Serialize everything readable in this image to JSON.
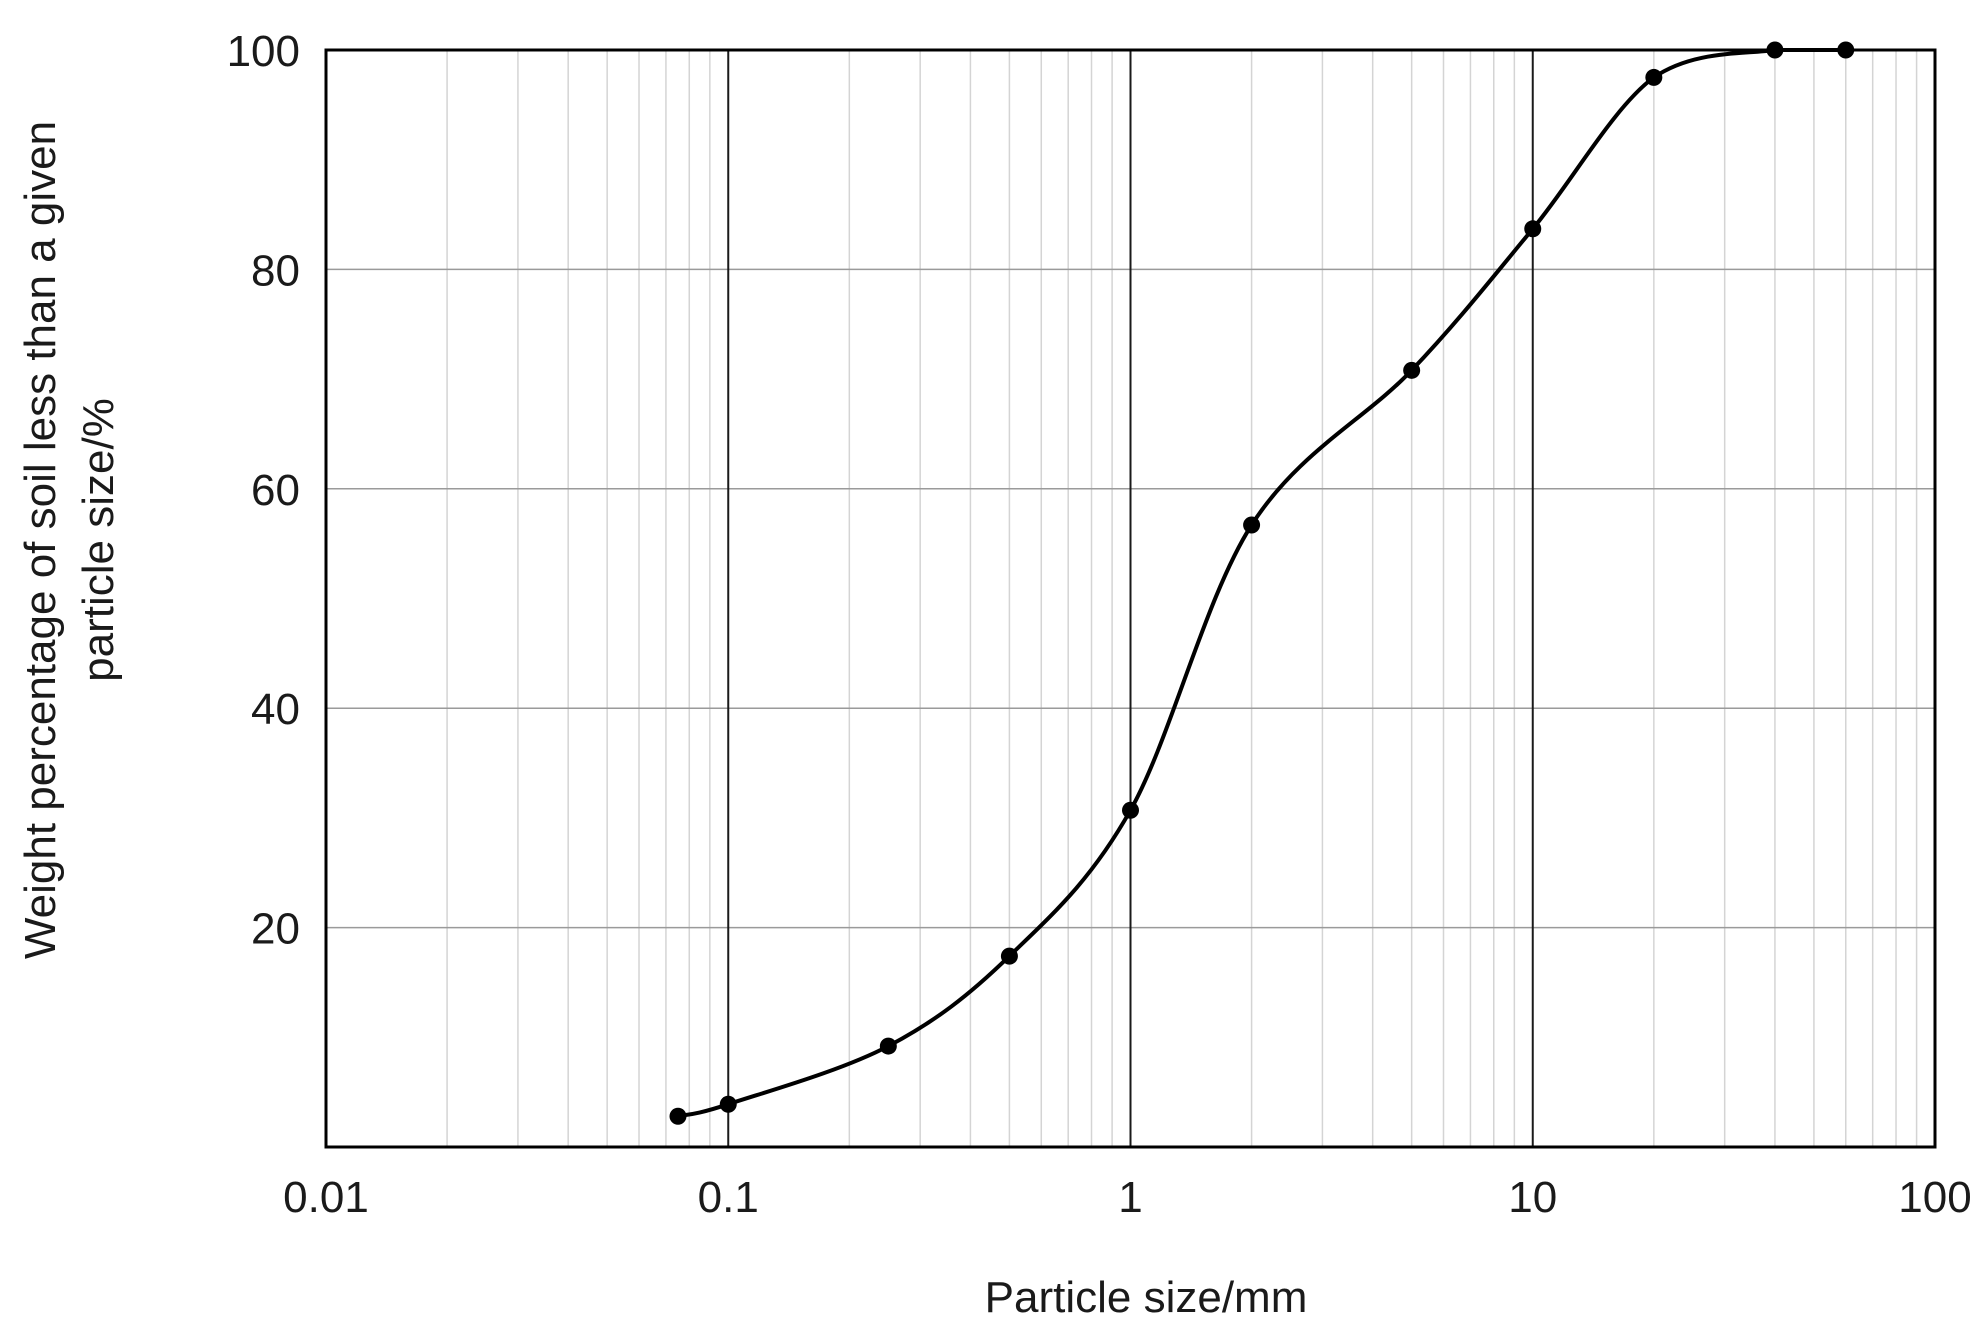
{
  "chart_data": {
    "type": "line",
    "title": "",
    "xlabel": "Particle size/mm",
    "ylabel_lines": [
      "Weight percentage of soil less than a given",
      "particle size/%"
    ],
    "x_scale": "log",
    "xlim": [
      0.01,
      100
    ],
    "ylim": [
      0,
      100
    ],
    "x_ticks": [
      0.01,
      0.1,
      1,
      10,
      100
    ],
    "x_tick_labels": [
      "0.01",
      "0.1",
      "1",
      "10",
      "100"
    ],
    "y_ticks": [
      20,
      40,
      60,
      80,
      100
    ],
    "y_tick_labels": [
      "20",
      "40",
      "60",
      "80",
      "100"
    ],
    "grid": true,
    "line_color": "#000000",
    "series": [
      {
        "x": [
          0.075,
          0.1,
          0.25,
          0.5,
          1,
          2,
          5,
          10,
          20,
          40,
          60
        ],
        "y": [
          2.8,
          3.9,
          9.2,
          17.4,
          30.7,
          56.7,
          70.8,
          83.7,
          97.5,
          100,
          100
        ]
      }
    ]
  }
}
